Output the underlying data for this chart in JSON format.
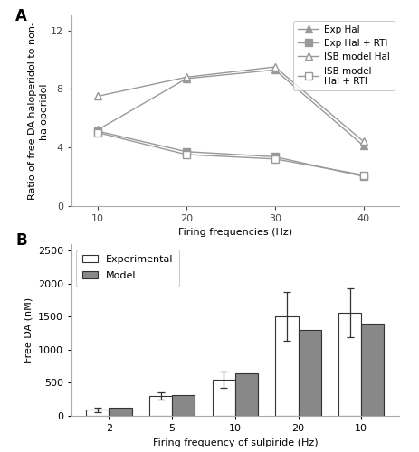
{
  "panel_A": {
    "title": "A",
    "xlabel": "Firing frequencies (Hz)",
    "ylabel": "Ratio of free DA haloperidol to non-\nhaloperidol",
    "x": [
      10,
      20,
      30,
      40
    ],
    "exp_hal": [
      5.2,
      8.7,
      9.3,
      4.1
    ],
    "exp_hal_rti": [
      5.1,
      3.7,
      3.35,
      2.0
    ],
    "isb_hal": [
      7.5,
      8.8,
      9.5,
      4.4
    ],
    "isb_hal_rti": [
      5.0,
      3.5,
      3.2,
      2.1
    ],
    "ylim": [
      0,
      13
    ],
    "yticks": [
      0,
      4,
      8,
      12
    ],
    "xticks": [
      10,
      20,
      30,
      40
    ],
    "line_color": "#999999",
    "legend_labels": [
      "Exp Hal",
      "Exp Hal + RTI",
      "ISB model Hal",
      "ISB model\nHal + RTI"
    ]
  },
  "panel_B": {
    "title": "B",
    "xlabel": "Firing frequency of sulpiride (Hz)",
    "ylabel": "Free DA (nM)",
    "xtick_labels": [
      "2",
      "5",
      "10",
      "20",
      "10"
    ],
    "exp_values": [
      90,
      300,
      545,
      1510,
      1560
    ],
    "model_values": [
      130,
      310,
      640,
      1300,
      1400
    ],
    "exp_errors": [
      30,
      50,
      120,
      370,
      370
    ],
    "ylim": [
      0,
      2600
    ],
    "yticks": [
      0,
      500,
      1000,
      1500,
      2000,
      2500
    ],
    "bar_color_exp": "#ffffff",
    "bar_color_model": "#888888",
    "bar_edge_color": "#333333"
  }
}
